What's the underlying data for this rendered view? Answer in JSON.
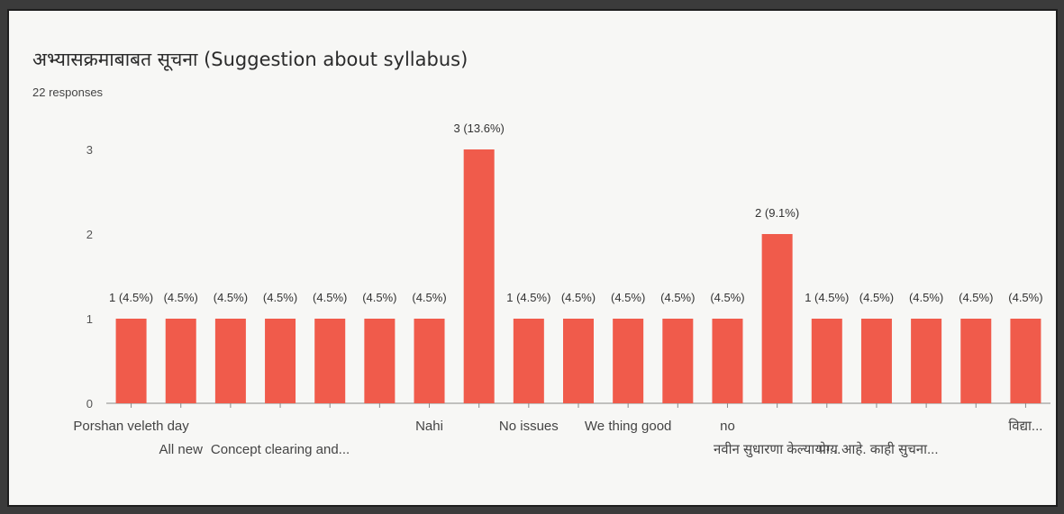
{
  "header": {
    "title": "अभ्यासक्रमाबाबत सूचना (Suggestion about syllabus)",
    "responses": "22 responses"
  },
  "chart_data": {
    "type": "bar",
    "title": "अभ्यासक्रमाबाबत सूचना (Suggestion about syllabus)",
    "xlabel": "",
    "ylabel": "",
    "ylim": [
      0,
      3
    ],
    "yticks": [
      0,
      1,
      2,
      3
    ],
    "bar_color": "#f05b4b",
    "categories": [
      "Porshan veleth day",
      "All new",
      "",
      "Concept clearing and...",
      "",
      "",
      "Nahi",
      "",
      "No issues",
      "",
      "We thing good",
      "",
      "no",
      "नवीन सुधारणा केल्या पा...",
      "",
      "योग्य आहे. काही सुचना...",
      "",
      "",
      "विद्या..."
    ],
    "values": [
      1,
      1,
      1,
      1,
      1,
      1,
      1,
      3,
      1,
      1,
      1,
      1,
      1,
      2,
      1,
      1,
      1,
      1,
      1
    ],
    "data_labels": [
      "1 (4.5%)",
      "(4.5%)",
      "(4.5%)",
      "(4.5%)",
      "(4.5%)",
      "(4.5%)",
      "(4.5%)",
      "3 (13.6%)",
      "1 (4.5%)",
      "(4.5%)",
      "(4.5%)",
      "(4.5%)",
      "(4.5%)",
      "2 (9.1%)",
      "1 (4.5%)",
      "(4.5%)",
      "(4.5%)",
      "(4.5%)",
      "(4.5%)"
    ]
  }
}
